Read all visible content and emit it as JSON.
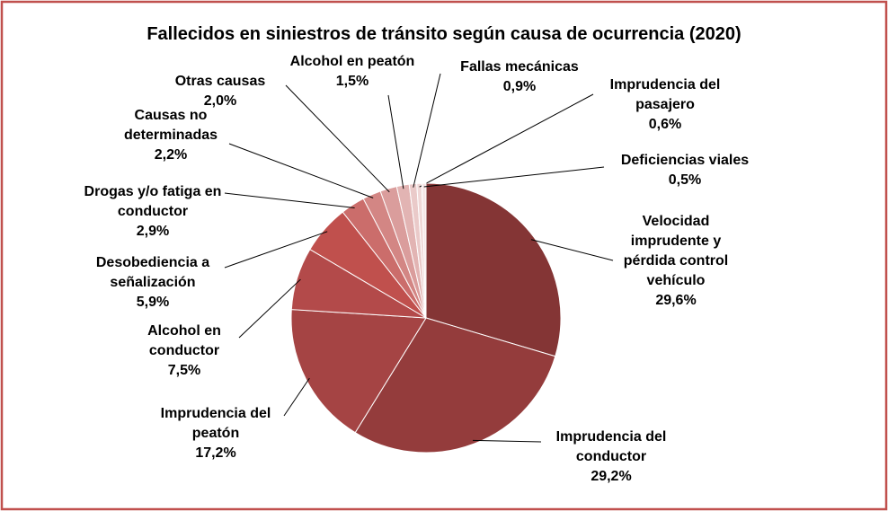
{
  "chart_data": {
    "type": "pie",
    "title": "Fallecidos en siniestros de tránsito según causa de ocurrencia (2020)",
    "categories": [
      "Velocidad imprudente y pérdida control vehículo",
      "Imprudencia del conductor",
      "Imprudencia del peatón",
      "Alcohol en conductor",
      "Desobediencia a señalización",
      "Drogas y/o fatiga en conductor",
      "Causas no determinadas",
      "Otras causas",
      "Alcohol en peatón",
      "Fallas mecánicas",
      "Imprudencia del pasajero",
      "Deficiencias viales"
    ],
    "values": [
      29.6,
      29.2,
      17.2,
      7.5,
      5.9,
      2.9,
      2.2,
      2.0,
      1.5,
      0.9,
      0.6,
      0.5
    ],
    "value_labels": [
      "29,6%",
      "29,2%",
      "17,2%",
      "7,5%",
      "5,9%",
      "2,9%",
      "2,2%",
      "2,0%",
      "1,5%",
      "0,9%",
      "0,6%",
      "0,5%"
    ],
    "colors": [
      "#843535",
      "#943c3c",
      "#a54444",
      "#b34a4a",
      "#c0504d",
      "#cb6d6b",
      "#d38684",
      "#da9d9c",
      "#e2b4b3",
      "#eacac9",
      "#f0d8d7",
      "#f6e6e6"
    ]
  }
}
